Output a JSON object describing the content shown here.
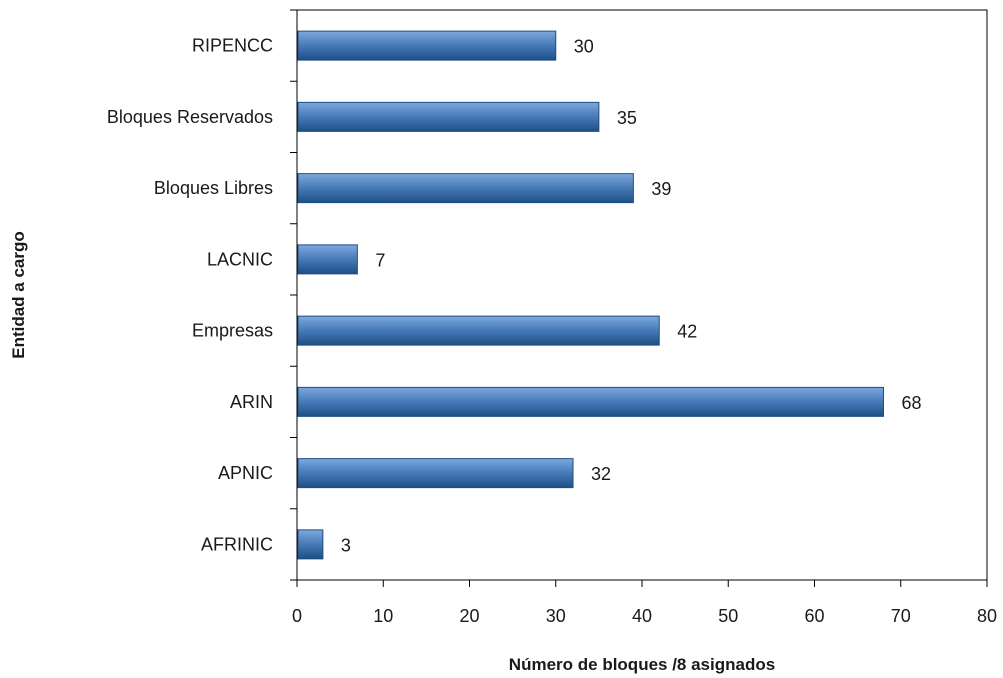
{
  "chart_data": {
    "type": "bar",
    "orientation": "horizontal",
    "title": "",
    "xlabel": "Número de bloques /8 asignados",
    "ylabel": "Entidad a cargo",
    "categories": [
      "RIPENCC",
      "Bloques Reservados",
      "Bloques Libres",
      "LACNIC",
      "Empresas",
      "ARIN",
      "APNIC",
      "AFRINIC"
    ],
    "values": [
      30,
      35,
      39,
      7,
      42,
      68,
      32,
      3
    ],
    "xlim": [
      0,
      80
    ],
    "xticks": [
      0,
      10,
      20,
      30,
      40,
      50,
      60,
      70,
      80
    ],
    "grid": false,
    "legend": "none",
    "bar_color": "#4a7ebb",
    "bar_color_dark": "#1f4e86",
    "bar_color_light": "#7fa8dc"
  }
}
